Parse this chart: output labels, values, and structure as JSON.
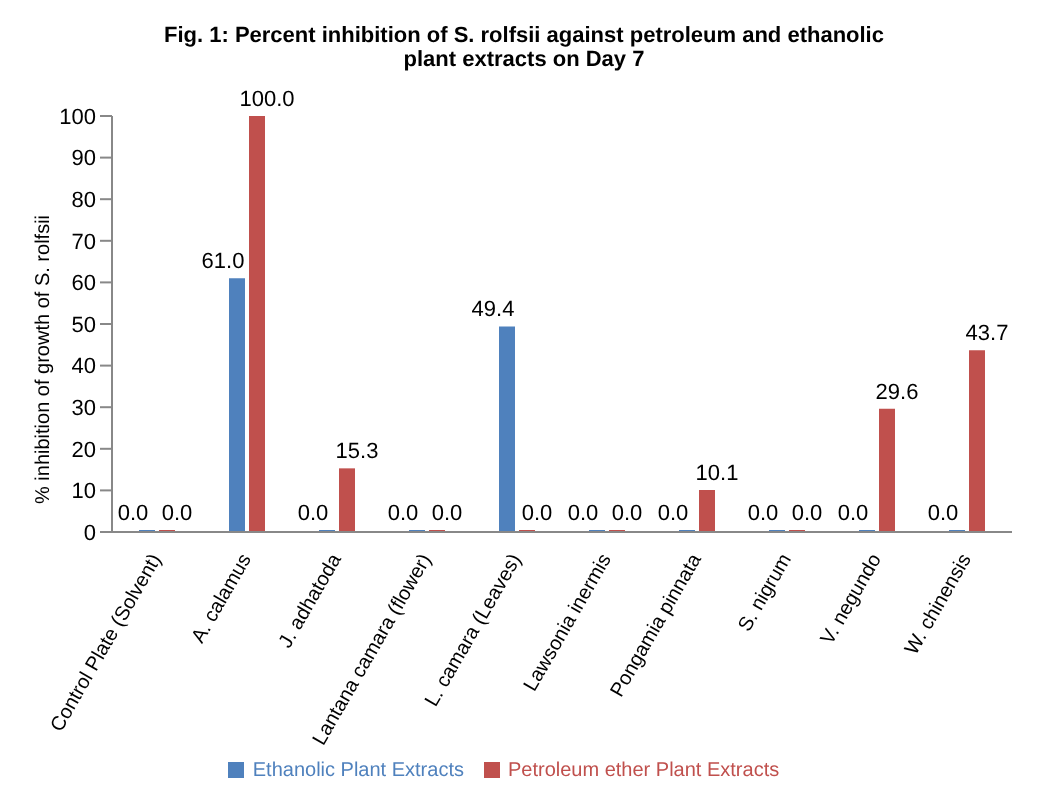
{
  "chart_data": {
    "type": "bar",
    "title": "Fig. 1: Percent inhibition of S. rolfsii against petroleum and ethanolic plant extracts on Day 7",
    "ylabel": "% inhibition of growth of S. rolfsii",
    "categories": [
      "Control Plate (Solvent)",
      "A. calamus",
      "J. adhatoda",
      "Lantana camara (flower)",
      "L. camara (Leaves)",
      "Lawsonia inermis",
      "Pongamia pinnata",
      "S. nigrum",
      "V. negundo",
      "W. chinensis"
    ],
    "series": [
      {
        "name": "Ethanolic Plant Extracts",
        "color": "#4f81bd",
        "values": [
          0,
          61,
          0,
          0,
          49.4,
          0,
          0,
          0,
          0,
          0
        ],
        "value_labels": [
          "0.0",
          "61.0",
          "0.0",
          "0.0",
          "49.4",
          "0.0",
          "0.0",
          "0.0",
          "0.0",
          "0.0"
        ]
      },
      {
        "name": "Petroleum ether Plant Extracts",
        "color": "#c0504d",
        "values": [
          0,
          100,
          15.3,
          0,
          0,
          0,
          10.1,
          0,
          29.6,
          43.7
        ],
        "value_labels": [
          "0.0",
          "100.0",
          "15.3",
          "0.0",
          "0.0",
          "0.0",
          "10.1",
          "0.0",
          "29.6",
          "43.7"
        ]
      }
    ],
    "ylim": [
      0,
      100
    ],
    "yticks": [
      0,
      10,
      20,
      30,
      40,
      50,
      60,
      70,
      80,
      90,
      100
    ],
    "grid": false,
    "legend": "bottom"
  }
}
